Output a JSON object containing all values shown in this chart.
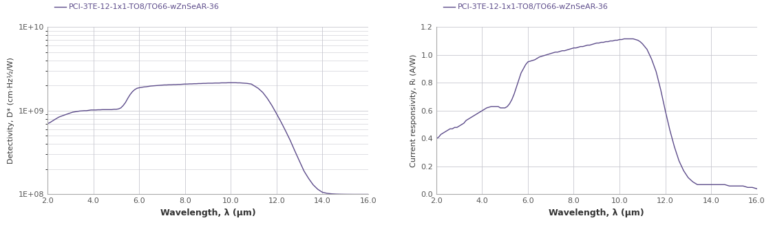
{
  "line_color": "#5c4b8a",
  "legend_label": "PCI-3TE-12-1x1-TO8/TO66-wZnSeAR-36",
  "background_color": "#ffffff",
  "grid_color": "#c8c8d0",
  "left_chart": {
    "xlabel": "Wavelength, λ (μm)",
    "ylabel": "Detectivity, D* (cm·Hz½/W)",
    "xlim": [
      2.0,
      16.0
    ],
    "ylim_log": [
      100000000.0,
      10000000000.0
    ],
    "xticks": [
      2.0,
      4.0,
      6.0,
      8.0,
      10.0,
      12.0,
      14.0,
      16.0
    ],
    "ytick_vals": [
      100000000.0,
      1000000000.0,
      10000000000.0
    ],
    "ytick_labels": [
      "1E+08",
      "1E+09",
      "1E+10"
    ],
    "wavelengths": [
      2.0,
      2.1,
      2.2,
      2.3,
      2.4,
      2.5,
      2.6,
      2.7,
      2.8,
      2.9,
      3.0,
      3.1,
      3.2,
      3.3,
      3.4,
      3.5,
      3.6,
      3.7,
      3.8,
      3.9,
      4.0,
      4.1,
      4.2,
      4.3,
      4.4,
      4.5,
      4.6,
      4.7,
      4.8,
      4.9,
      5.0,
      5.1,
      5.2,
      5.3,
      5.4,
      5.5,
      5.6,
      5.7,
      5.8,
      5.9,
      6.0,
      6.1,
      6.2,
      6.3,
      6.4,
      6.5,
      6.6,
      6.7,
      6.8,
      6.9,
      7.0,
      7.1,
      7.2,
      7.3,
      7.4,
      7.5,
      7.6,
      7.7,
      7.8,
      7.9,
      8.0,
      8.1,
      8.2,
      8.3,
      8.4,
      8.5,
      8.6,
      8.7,
      8.8,
      8.9,
      9.0,
      9.1,
      9.2,
      9.3,
      9.4,
      9.5,
      9.6,
      9.7,
      9.8,
      9.9,
      10.0,
      10.1,
      10.2,
      10.3,
      10.4,
      10.5,
      10.6,
      10.7,
      10.8,
      10.9,
      11.0,
      11.2,
      11.4,
      11.6,
      11.8,
      12.0,
      12.2,
      12.4,
      12.6,
      12.8,
      13.0,
      13.2,
      13.4,
      13.6,
      13.8,
      14.0,
      14.2,
      14.4,
      14.6,
      14.8,
      15.0,
      15.2,
      15.4,
      15.6,
      15.8,
      16.0
    ],
    "detectivity": [
      700000000.0,
      720000000.0,
      750000000.0,
      780000000.0,
      810000000.0,
      840000000.0,
      860000000.0,
      880000000.0,
      900000000.0,
      920000000.0,
      940000000.0,
      960000000.0,
      970000000.0,
      980000000.0,
      990000000.0,
      995000000.0,
      1000000000.0,
      1000000000.0,
      1010000000.0,
      1020000000.0,
      1020000000.0,
      1020000000.0,
      1025000000.0,
      1025000000.0,
      1030000000.0,
      1030000000.0,
      1030000000.0,
      1030000000.0,
      1030000000.0,
      1040000000.0,
      1040000000.0,
      1050000000.0,
      1080000000.0,
      1150000000.0,
      1250000000.0,
      1400000000.0,
      1550000000.0,
      1680000000.0,
      1780000000.0,
      1850000000.0,
      1880000000.0,
      1900000000.0,
      1920000000.0,
      1930000000.0,
      1950000000.0,
      1970000000.0,
      1980000000.0,
      1990000000.0,
      2000000000.0,
      2010000000.0,
      2020000000.0,
      2030000000.0,
      2030000000.0,
      2040000000.0,
      2040000000.0,
      2050000000.0,
      2050000000.0,
      2060000000.0,
      2060000000.0,
      2070000000.0,
      2080000000.0,
      2080000000.0,
      2090000000.0,
      2090000000.0,
      2100000000.0,
      2100000000.0,
      2110000000.0,
      2110000000.0,
      2120000000.0,
      2120000000.0,
      2130000000.0,
      2130000000.0,
      2130000000.0,
      2140000000.0,
      2140000000.0,
      2140000000.0,
      2150000000.0,
      2150000000.0,
      2150000000.0,
      2160000000.0,
      2160000000.0,
      2160000000.0,
      2160000000.0,
      2150000000.0,
      2150000000.0,
      2140000000.0,
      2130000000.0,
      2120000000.0,
      2100000000.0,
      2080000000.0,
      2000000000.0,
      1850000000.0,
      1650000000.0,
      1400000000.0,
      1150000000.0,
      920000000.0,
      730000000.0,
      570000000.0,
      440000000.0,
      330000000.0,
      250000000.0,
      190000000.0,
      155000000.0,
      130000000.0,
      115000000.0,
      106000000.0,
      103000000.0,
      101500000.0,
      100800000.0,
      100400000.0,
      100200000.0,
      100100000.0,
      100000000.0,
      100000000.0,
      100000000.0,
      100000000.0
    ]
  },
  "right_chart": {
    "xlabel": "Wavelength, λ (μm)",
    "ylabel": "Current responsivity, Rᵢ (A/W)",
    "xlim": [
      2.0,
      16.0
    ],
    "ylim": [
      0.0,
      1.2
    ],
    "yticks": [
      0.0,
      0.2,
      0.4,
      0.6,
      0.8,
      1.0,
      1.2
    ],
    "xticks": [
      2.0,
      4.0,
      6.0,
      8.0,
      10.0,
      12.0,
      14.0,
      16.0
    ],
    "wavelengths": [
      2.0,
      2.1,
      2.2,
      2.3,
      2.4,
      2.5,
      2.6,
      2.7,
      2.8,
      2.9,
      3.0,
      3.1,
      3.2,
      3.3,
      3.4,
      3.5,
      3.6,
      3.7,
      3.8,
      3.9,
      4.0,
      4.1,
      4.2,
      4.3,
      4.4,
      4.5,
      4.6,
      4.7,
      4.8,
      4.9,
      5.0,
      5.1,
      5.2,
      5.3,
      5.4,
      5.5,
      5.6,
      5.7,
      5.8,
      5.9,
      6.0,
      6.1,
      6.2,
      6.3,
      6.4,
      6.5,
      6.6,
      6.7,
      6.8,
      6.9,
      7.0,
      7.1,
      7.2,
      7.3,
      7.4,
      7.5,
      7.6,
      7.7,
      7.8,
      7.9,
      8.0,
      8.1,
      8.2,
      8.3,
      8.4,
      8.5,
      8.6,
      8.7,
      8.8,
      8.9,
      9.0,
      9.1,
      9.2,
      9.3,
      9.4,
      9.5,
      9.6,
      9.7,
      9.8,
      9.9,
      10.0,
      10.1,
      10.2,
      10.3,
      10.4,
      10.5,
      10.6,
      10.7,
      10.8,
      10.9,
      11.0,
      11.2,
      11.4,
      11.6,
      11.8,
      12.0,
      12.2,
      12.4,
      12.6,
      12.8,
      13.0,
      13.2,
      13.4,
      13.6,
      13.8,
      14.0,
      14.2,
      14.4,
      14.6,
      14.8,
      15.0,
      15.2,
      15.4,
      15.6,
      15.8,
      16.0
    ],
    "responsivity": [
      0.4,
      0.41,
      0.43,
      0.44,
      0.45,
      0.46,
      0.47,
      0.47,
      0.48,
      0.48,
      0.49,
      0.5,
      0.51,
      0.53,
      0.54,
      0.55,
      0.56,
      0.57,
      0.58,
      0.59,
      0.6,
      0.61,
      0.62,
      0.625,
      0.63,
      0.63,
      0.63,
      0.63,
      0.62,
      0.62,
      0.62,
      0.63,
      0.65,
      0.68,
      0.72,
      0.77,
      0.82,
      0.87,
      0.9,
      0.93,
      0.95,
      0.955,
      0.96,
      0.965,
      0.975,
      0.985,
      0.99,
      0.995,
      1.0,
      1.005,
      1.01,
      1.015,
      1.02,
      1.02,
      1.025,
      1.03,
      1.03,
      1.035,
      1.04,
      1.045,
      1.05,
      1.05,
      1.055,
      1.06,
      1.06,
      1.065,
      1.07,
      1.07,
      1.075,
      1.08,
      1.085,
      1.085,
      1.09,
      1.09,
      1.095,
      1.095,
      1.1,
      1.1,
      1.105,
      1.105,
      1.11,
      1.11,
      1.115,
      1.115,
      1.115,
      1.115,
      1.115,
      1.11,
      1.105,
      1.095,
      1.08,
      1.04,
      0.97,
      0.88,
      0.75,
      0.6,
      0.46,
      0.34,
      0.24,
      0.17,
      0.12,
      0.09,
      0.07,
      0.07,
      0.07,
      0.07,
      0.07,
      0.07,
      0.07,
      0.06,
      0.06,
      0.06,
      0.06,
      0.05,
      0.05,
      0.04
    ]
  }
}
